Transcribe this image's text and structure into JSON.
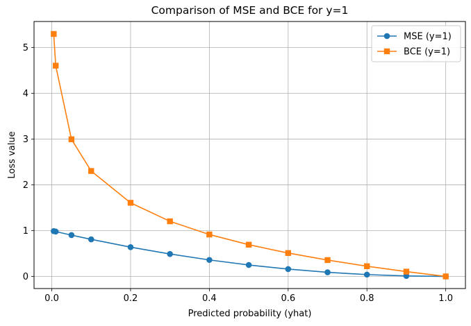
{
  "chart_data": {
    "type": "line",
    "title": "Comparison of MSE and BCE for y=1",
    "xlabel": "Predicted probability (yhat)",
    "ylabel": "Loss value",
    "xlim": [
      -0.045,
      1.05
    ],
    "ylim": [
      -0.265,
      5.57
    ],
    "xticks": [
      0.0,
      0.2,
      0.4,
      0.6,
      0.8,
      1.0
    ],
    "xtick_labels": [
      "0.0",
      "0.2",
      "0.4",
      "0.6",
      "0.8",
      "1.0"
    ],
    "yticks": [
      0,
      1,
      2,
      3,
      4,
      5
    ],
    "ytick_labels": [
      "0",
      "1",
      "2",
      "3",
      "4",
      "5"
    ],
    "grid": true,
    "legend_position": "top-right",
    "x": [
      0.005,
      0.01,
      0.05,
      0.1,
      0.2,
      0.3,
      0.4,
      0.5,
      0.6,
      0.7,
      0.8,
      0.9,
      1.0
    ],
    "series": [
      {
        "name": "MSE (y=1)",
        "color": "#1f77b4",
        "marker": "circle",
        "values": [
          0.99,
          0.98,
          0.9025,
          0.81,
          0.64,
          0.49,
          0.36,
          0.25,
          0.16,
          0.09,
          0.04,
          0.01,
          0.0
        ]
      },
      {
        "name": "BCE (y=1)",
        "color": "#ff7f0e",
        "marker": "square",
        "values": [
          5.298,
          4.605,
          2.996,
          2.303,
          1.609,
          1.204,
          0.916,
          0.693,
          0.511,
          0.357,
          0.223,
          0.105,
          0.0
        ]
      }
    ]
  }
}
